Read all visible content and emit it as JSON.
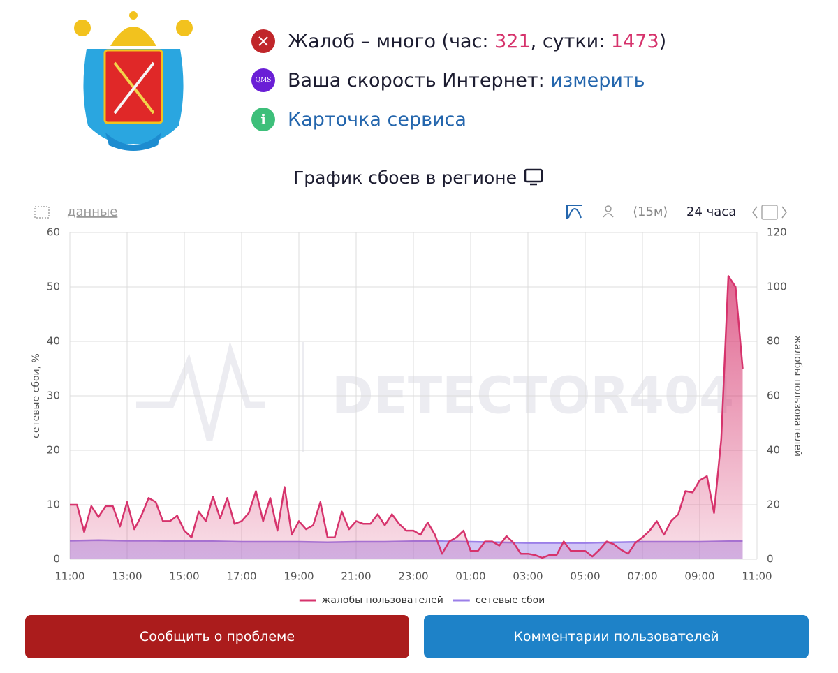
{
  "header": {
    "complaints": {
      "text": "Жалоб – много (час: ",
      "hour": 321,
      "sep": ", сутки: ",
      "day": 1473,
      "end": ")"
    },
    "speed": {
      "badge": "QMS",
      "text": "Ваша скорость Интернет: ",
      "link": "измерить"
    },
    "card": {
      "badge": "i",
      "link": "Карточка сервиса"
    }
  },
  "chart_title": "График сбоев в регионе",
  "toolbar": {
    "data_link": "данные",
    "interval": "⟨15м⟩",
    "period": "24 часа"
  },
  "chart_data": {
    "type": "line",
    "watermark": "DETECTOR404",
    "y_label": "сетевые сбои, %",
    "y2_label": "жалобы пользователей",
    "xlim": [
      0,
      24
    ],
    "xticks": [
      {
        "value": 0,
        "label": "11:00"
      },
      {
        "value": 2,
        "label": "13:00"
      },
      {
        "value": 4,
        "label": "15:00"
      },
      {
        "value": 6,
        "label": "17:00"
      },
      {
        "value": 8,
        "label": "19:00"
      },
      {
        "value": 10,
        "label": "21:00"
      },
      {
        "value": 12,
        "label": "23:00"
      },
      {
        "value": 14,
        "label": "01:00"
      },
      {
        "value": 16,
        "label": "03:00"
      },
      {
        "value": 18,
        "label": "05:00"
      },
      {
        "value": 20,
        "label": "07:00"
      },
      {
        "value": 22,
        "label": "09:00"
      },
      {
        "value": 24,
        "label": "11:00"
      }
    ],
    "ylim": [
      0,
      60
    ],
    "yticks": [
      0,
      10,
      20,
      30,
      40,
      50,
      60
    ],
    "y2lim": [
      0,
      120
    ],
    "y2ticks": [
      0,
      20,
      40,
      60,
      80,
      100,
      120
    ],
    "grid": true,
    "legend": "bottom",
    "series": [
      {
        "name": "жалобы пользователей",
        "color": "#d6336c",
        "axis": "y2",
        "x": [
          0,
          0.25,
          0.5,
          0.75,
          1,
          1.25,
          1.5,
          1.75,
          2,
          2.25,
          2.5,
          2.75,
          3,
          3.25,
          3.5,
          3.75,
          4,
          4.25,
          4.5,
          4.75,
          5,
          5.25,
          5.5,
          5.75,
          6,
          6.25,
          6.5,
          6.75,
          7,
          7.25,
          7.5,
          7.75,
          8,
          8.25,
          8.5,
          8.75,
          9,
          9.25,
          9.5,
          9.75,
          10,
          10.25,
          10.5,
          10.75,
          11,
          11.25,
          11.5,
          11.75,
          12,
          12.25,
          12.5,
          12.75,
          13,
          13.25,
          13.5,
          13.75,
          14,
          14.25,
          14.5,
          14.75,
          15,
          15.25,
          15.5,
          15.75,
          16,
          16.25,
          16.5,
          16.75,
          17,
          17.25,
          17.5,
          17.75,
          18,
          18.25,
          18.5,
          18.75,
          19,
          19.25,
          19.5,
          19.75,
          20,
          20.25,
          20.5,
          20.75,
          21,
          21.25,
          21.5,
          21.75,
          22,
          22.25,
          22.5,
          22.75,
          23,
          23.25,
          23.5
        ],
        "values": [
          20,
          20,
          10,
          19.5,
          15.5,
          19.5,
          19.5,
          12,
          21,
          11,
          16,
          22.5,
          21,
          14,
          14,
          16,
          10.5,
          8,
          17.5,
          14,
          23,
          15,
          22.5,
          13,
          14,
          17,
          25,
          14,
          22.5,
          10.5,
          26.5,
          9,
          14,
          11,
          12.5,
          21,
          8,
          8,
          17.5,
          11,
          14,
          13,
          13,
          16.5,
          12.5,
          16.5,
          13,
          10.5,
          10.5,
          9,
          13.5,
          9,
          2,
          6.5,
          8,
          10.5,
          3,
          3,
          6.5,
          6.5,
          5,
          8.5,
          6,
          2,
          2,
          1.5,
          0.5,
          1.5,
          1.5,
          6.5,
          3,
          3,
          3,
          1,
          3.5,
          6.5,
          5.5,
          3.5,
          2,
          6,
          8,
          10.5,
          14,
          9,
          14,
          16.5,
          25,
          24.5,
          29,
          30.5,
          17,
          44,
          104,
          100,
          70
        ]
      },
      {
        "name": "сетевые сбои",
        "color": "#9b7fe8",
        "axis": "y",
        "x": [
          0,
          1,
          2,
          3,
          4,
          5,
          6,
          7,
          8,
          9,
          10,
          11,
          12,
          13,
          14,
          15,
          16,
          17,
          18,
          19,
          20,
          21,
          22,
          23,
          23.5
        ],
        "values": [
          3.4,
          3.5,
          3.4,
          3.4,
          3.3,
          3.3,
          3.2,
          3.2,
          3.2,
          3.1,
          3.2,
          3.2,
          3.3,
          3.3,
          3.2,
          3.1,
          3.0,
          3.0,
          3.0,
          3.1,
          3.2,
          3.2,
          3.2,
          3.3,
          3.3
        ]
      }
    ]
  },
  "buttons": [
    "Сообщить о проблеме",
    "Комментарии пользователей"
  ]
}
